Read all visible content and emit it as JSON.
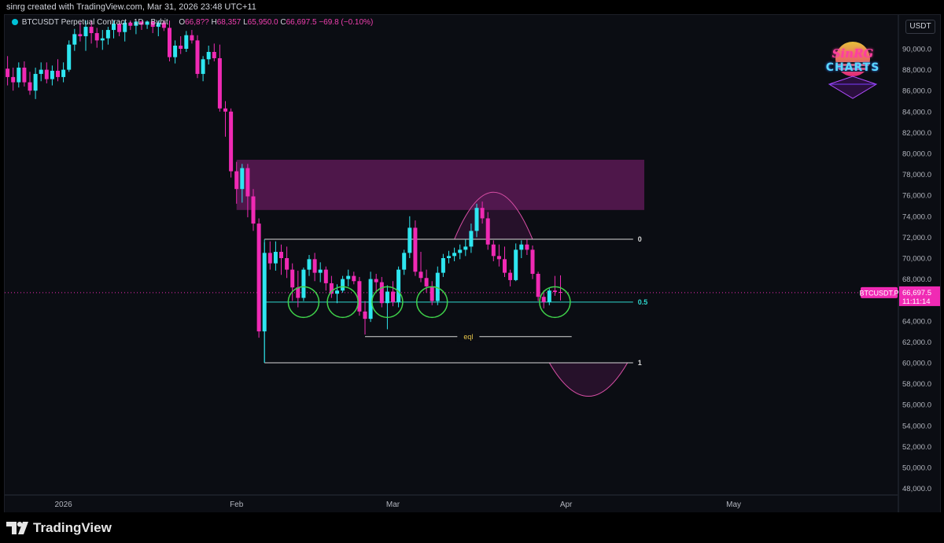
{
  "header": {
    "credit": "sinrg created with TradingView.com, Mar 31, 2026 23:48 UTC+11"
  },
  "legend": {
    "symbol": "BTCUSDT Perpetual Contract · 1D · Bybit",
    "o_label": "O",
    "o_value": "66,8??",
    "h_label": "H",
    "h_value": "68,357",
    "l_label": "L",
    "l_value": "65,950.0",
    "c_label": "C",
    "c_value": "66,697.5",
    "change": "−69.8 (−0.10%)"
  },
  "price_axis": {
    "currency": "USDT",
    "ticks": [
      "90,000.0",
      "88,000.0",
      "86,000.0",
      "84,000.0",
      "82,000.0",
      "80,000.0",
      "78,000.0",
      "76,000.0",
      "74,000.0",
      "72,000.0",
      "70,000.0",
      "68,000.0",
      "64,000.0",
      "62,000.0",
      "60,000.0",
      "58,000.0",
      "56,000.0",
      "54,000.0",
      "52,000.0",
      "50,000.0",
      "48,000.0"
    ],
    "last_symbol": "BTCUSDT.P",
    "last_price": "66,697.5",
    "countdown": "11:11:14"
  },
  "time_axis": {
    "labels": [
      "2026",
      "Feb",
      "Mar",
      "Apr",
      "May"
    ]
  },
  "drawings": {
    "fib_0": "0",
    "fib_05": "0.5",
    "fib_1": "1",
    "eql": "eql"
  },
  "watermark": {
    "line1": "SinRG",
    "line2": "CHARTS"
  },
  "footer": {
    "brand": "TradingView"
  },
  "colors": {
    "background": "#0b0d13",
    "bull": "#2ee6f0",
    "bear": "#f02ab4",
    "fib_level_0_1": "#d8d8d8",
    "fib_level_05": "#2fd9cf",
    "eql_line": "#d8d8d8",
    "eql_label": "#e8c64b",
    "circles": "#3fd24a",
    "supply_zone": "#5a1a55",
    "arcs": "#d94fa6",
    "price_tag": "#f02ab4"
  },
  "chart_data": {
    "type": "candlestick",
    "title": "BTCUSDT Perpetual Contract · 1D · Bybit",
    "interval": "1D",
    "ylim": [
      47000,
      92700
    ],
    "x_labels": [
      "2026",
      "Feb",
      "Mar",
      "Apr",
      "May"
    ],
    "candles": [
      {
        "date": "2025-12-21",
        "o": 88900,
        "h": 89800,
        "l": 87500,
        "c": 88100
      },
      {
        "date": "2025-12-22",
        "o": 88100,
        "h": 89300,
        "l": 86500,
        "c": 87300
      },
      {
        "date": "2025-12-23",
        "o": 87300,
        "h": 88200,
        "l": 86000,
        "c": 86800
      },
      {
        "date": "2025-12-24",
        "o": 86800,
        "h": 88700,
        "l": 86300,
        "c": 88200
      },
      {
        "date": "2025-12-25",
        "o": 88200,
        "h": 88800,
        "l": 86400,
        "c": 86800
      },
      {
        "date": "2025-12-26",
        "o": 86800,
        "h": 87800,
        "l": 85600,
        "c": 86000
      },
      {
        "date": "2025-12-27",
        "o": 86000,
        "h": 88200,
        "l": 85200,
        "c": 87600
      },
      {
        "date": "2025-12-28",
        "o": 87600,
        "h": 88700,
        "l": 86900,
        "c": 88000
      },
      {
        "date": "2025-12-29",
        "o": 88000,
        "h": 88700,
        "l": 86700,
        "c": 87100
      },
      {
        "date": "2025-12-30",
        "o": 87100,
        "h": 88400,
        "l": 86500,
        "c": 87900
      },
      {
        "date": "2025-12-31",
        "o": 87900,
        "h": 89000,
        "l": 86900,
        "c": 87300
      },
      {
        "date": "2026-01-01",
        "o": 87300,
        "h": 88700,
        "l": 86800,
        "c": 88000
      },
      {
        "date": "2026-01-02",
        "o": 88000,
        "h": 90800,
        "l": 87800,
        "c": 90400
      },
      {
        "date": "2026-01-03",
        "o": 90400,
        "h": 91900,
        "l": 89800,
        "c": 91400
      },
      {
        "date": "2026-01-04",
        "o": 91400,
        "h": 92500,
        "l": 90700,
        "c": 91200
      },
      {
        "date": "2026-01-05",
        "o": 91200,
        "h": 92700,
        "l": 89800,
        "c": 92100
      },
      {
        "date": "2026-01-06",
        "o": 92100,
        "h": 92700,
        "l": 90500,
        "c": 91500
      },
      {
        "date": "2026-01-07",
        "o": 91500,
        "h": 92000,
        "l": 90100,
        "c": 90800
      },
      {
        "date": "2026-01-08",
        "o": 90800,
        "h": 91800,
        "l": 89900,
        "c": 91000
      },
      {
        "date": "2026-01-09",
        "o": 91000,
        "h": 92100,
        "l": 90400,
        "c": 91800
      },
      {
        "date": "2026-01-10",
        "o": 91800,
        "h": 92700,
        "l": 91000,
        "c": 92400
      },
      {
        "date": "2026-01-11",
        "o": 92400,
        "h": 92700,
        "l": 91200,
        "c": 91600
      },
      {
        "date": "2026-01-12",
        "o": 91600,
        "h": 92700,
        "l": 90700,
        "c": 92500
      },
      {
        "date": "2026-01-13",
        "o": 92500,
        "h": 92700,
        "l": 91800,
        "c": 92200
      },
      {
        "date": "2026-01-14",
        "o": 92200,
        "h": 92700,
        "l": 91400,
        "c": 92600
      },
      {
        "date": "2026-01-15",
        "o": 92600,
        "h": 92700,
        "l": 91800,
        "c": 92300
      },
      {
        "date": "2026-01-16",
        "o": 92300,
        "h": 92700,
        "l": 91900,
        "c": 92600
      },
      {
        "date": "2026-01-17",
        "o": 92600,
        "h": 92700,
        "l": 91500,
        "c": 92100
      },
      {
        "date": "2026-01-18",
        "o": 92100,
        "h": 92700,
        "l": 91200,
        "c": 92500
      },
      {
        "date": "2026-01-19",
        "o": 92500,
        "h": 92700,
        "l": 91700,
        "c": 92000
      },
      {
        "date": "2026-01-20",
        "o": 92000,
        "h": 92700,
        "l": 88800,
        "c": 89200
      },
      {
        "date": "2026-01-21",
        "o": 89200,
        "h": 90800,
        "l": 88600,
        "c": 90300
      },
      {
        "date": "2026-01-22",
        "o": 90300,
        "h": 91200,
        "l": 89500,
        "c": 90000
      },
      {
        "date": "2026-01-23",
        "o": 90000,
        "h": 91700,
        "l": 89700,
        "c": 91300
      },
      {
        "date": "2026-01-24",
        "o": 91300,
        "h": 91800,
        "l": 90500,
        "c": 90800
      },
      {
        "date": "2026-01-25",
        "o": 90800,
        "h": 91300,
        "l": 87200,
        "c": 87600
      },
      {
        "date": "2026-01-26",
        "o": 87600,
        "h": 89300,
        "l": 86900,
        "c": 89000
      },
      {
        "date": "2026-01-27",
        "o": 89000,
        "h": 90300,
        "l": 88500,
        "c": 89700
      },
      {
        "date": "2026-01-28",
        "o": 89700,
        "h": 90500,
        "l": 88800,
        "c": 89100
      },
      {
        "date": "2026-01-29",
        "o": 89100,
        "h": 90400,
        "l": 84000,
        "c": 84300
      },
      {
        "date": "2026-01-30",
        "o": 84300,
        "h": 85000,
        "l": 81600,
        "c": 84000
      },
      {
        "date": "2026-01-31",
        "o": 84000,
        "h": 84300,
        "l": 77700,
        "c": 78300
      },
      {
        "date": "2026-02-01",
        "o": 78300,
        "h": 79200,
        "l": 75200,
        "c": 76600
      },
      {
        "date": "2026-02-02",
        "o": 76600,
        "h": 79000,
        "l": 75300,
        "c": 78600
      },
      {
        "date": "2026-02-03",
        "o": 78600,
        "h": 79000,
        "l": 73900,
        "c": 75900
      },
      {
        "date": "2026-02-04",
        "o": 75900,
        "h": 76600,
        "l": 72600,
        "c": 73300
      },
      {
        "date": "2026-02-05",
        "o": 73300,
        "h": 73800,
        "l": 62400,
        "c": 63000
      },
      {
        "date": "2026-02-06",
        "o": 63000,
        "h": 71500,
        "l": 60000,
        "c": 70500
      },
      {
        "date": "2026-02-07",
        "o": 70500,
        "h": 71600,
        "l": 68900,
        "c": 69500
      },
      {
        "date": "2026-02-08",
        "o": 69500,
        "h": 71600,
        "l": 68800,
        "c": 70600
      },
      {
        "date": "2026-02-09",
        "o": 70600,
        "h": 71300,
        "l": 68400,
        "c": 70000
      },
      {
        "date": "2026-02-10",
        "o": 70000,
        "h": 71100,
        "l": 68100,
        "c": 68900
      },
      {
        "date": "2026-02-11",
        "o": 68900,
        "h": 69500,
        "l": 65900,
        "c": 67200
      },
      {
        "date": "2026-02-12",
        "o": 67200,
        "h": 68800,
        "l": 65300,
        "c": 66200
      },
      {
        "date": "2026-02-13",
        "o": 66200,
        "h": 69100,
        "l": 65900,
        "c": 68900
      },
      {
        "date": "2026-02-14",
        "o": 68900,
        "h": 70300,
        "l": 68300,
        "c": 69900
      },
      {
        "date": "2026-02-15",
        "o": 69900,
        "h": 70500,
        "l": 67800,
        "c": 68600
      },
      {
        "date": "2026-02-16",
        "o": 68600,
        "h": 69600,
        "l": 67700,
        "c": 68900
      },
      {
        "date": "2026-02-17",
        "o": 68900,
        "h": 69200,
        "l": 66900,
        "c": 67600
      },
      {
        "date": "2026-02-18",
        "o": 67600,
        "h": 68300,
        "l": 66200,
        "c": 66600
      },
      {
        "date": "2026-02-19",
        "o": 66600,
        "h": 67500,
        "l": 65700,
        "c": 66900
      },
      {
        "date": "2026-02-20",
        "o": 66900,
        "h": 68300,
        "l": 66700,
        "c": 68000
      },
      {
        "date": "2026-02-21",
        "o": 68000,
        "h": 68900,
        "l": 67300,
        "c": 68300
      },
      {
        "date": "2026-02-22",
        "o": 68300,
        "h": 68700,
        "l": 67500,
        "c": 67800
      },
      {
        "date": "2026-02-23",
        "o": 67800,
        "h": 68200,
        "l": 64500,
        "c": 64900
      },
      {
        "date": "2026-02-24",
        "o": 64900,
        "h": 65900,
        "l": 62700,
        "c": 64200
      },
      {
        "date": "2026-02-25",
        "o": 64200,
        "h": 68700,
        "l": 63900,
        "c": 68000
      },
      {
        "date": "2026-02-26",
        "o": 68000,
        "h": 68500,
        "l": 66800,
        "c": 67700
      },
      {
        "date": "2026-02-27",
        "o": 67700,
        "h": 68200,
        "l": 65300,
        "c": 65700
      },
      {
        "date": "2026-02-28",
        "o": 65700,
        "h": 67400,
        "l": 63200,
        "c": 66800
      },
      {
        "date": "2026-03-01",
        "o": 66800,
        "h": 67800,
        "l": 65400,
        "c": 65800
      },
      {
        "date": "2026-03-02",
        "o": 65800,
        "h": 69200,
        "l": 65300,
        "c": 68900
      },
      {
        "date": "2026-03-03",
        "o": 68900,
        "h": 70800,
        "l": 68400,
        "c": 70500
      },
      {
        "date": "2026-03-04",
        "o": 70500,
        "h": 74000,
        "l": 70000,
        "c": 72900
      },
      {
        "date": "2026-03-05",
        "o": 72900,
        "h": 73600,
        "l": 68300,
        "c": 68700
      },
      {
        "date": "2026-03-06",
        "o": 68700,
        "h": 70600,
        "l": 67700,
        "c": 68100
      },
      {
        "date": "2026-03-07",
        "o": 68100,
        "h": 68900,
        "l": 66700,
        "c": 67300
      },
      {
        "date": "2026-03-08",
        "o": 67300,
        "h": 67800,
        "l": 65500,
        "c": 65900
      },
      {
        "date": "2026-03-09",
        "o": 65900,
        "h": 69200,
        "l": 65500,
        "c": 68600
      },
      {
        "date": "2026-03-10",
        "o": 68600,
        "h": 70400,
        "l": 68200,
        "c": 70000
      },
      {
        "date": "2026-03-11",
        "o": 70000,
        "h": 70700,
        "l": 69500,
        "c": 70200
      },
      {
        "date": "2026-03-12",
        "o": 70200,
        "h": 71000,
        "l": 69700,
        "c": 70500
      },
      {
        "date": "2026-03-13",
        "o": 70500,
        "h": 71300,
        "l": 69900,
        "c": 70800
      },
      {
        "date": "2026-03-14",
        "o": 70800,
        "h": 71800,
        "l": 70200,
        "c": 71100
      },
      {
        "date": "2026-03-15",
        "o": 71100,
        "h": 73300,
        "l": 70500,
        "c": 72600
      },
      {
        "date": "2026-03-16",
        "o": 72600,
        "h": 75200,
        "l": 72000,
        "c": 74800
      },
      {
        "date": "2026-03-17",
        "o": 74800,
        "h": 75400,
        "l": 73300,
        "c": 73800
      },
      {
        "date": "2026-03-18",
        "o": 73800,
        "h": 74400,
        "l": 70800,
        "c": 71300
      },
      {
        "date": "2026-03-19",
        "o": 71300,
        "h": 71700,
        "l": 69700,
        "c": 70200
      },
      {
        "date": "2026-03-20",
        "o": 70200,
        "h": 71300,
        "l": 69200,
        "c": 69900
      },
      {
        "date": "2026-03-21",
        "o": 69900,
        "h": 71100,
        "l": 68200,
        "c": 68600
      },
      {
        "date": "2026-03-22",
        "o": 68600,
        "h": 68900,
        "l": 67300,
        "c": 67900
      },
      {
        "date": "2026-03-23",
        "o": 67900,
        "h": 71400,
        "l": 67800,
        "c": 70800
      },
      {
        "date": "2026-03-24",
        "o": 70800,
        "h": 71700,
        "l": 70000,
        "c": 71300
      },
      {
        "date": "2026-03-25",
        "o": 71300,
        "h": 71800,
        "l": 70300,
        "c": 70800
      },
      {
        "date": "2026-03-26",
        "o": 70800,
        "h": 71200,
        "l": 68000,
        "c": 68500
      },
      {
        "date": "2026-03-27",
        "o": 68500,
        "h": 68700,
        "l": 65900,
        "c": 66300
      },
      {
        "date": "2026-03-28",
        "o": 66300,
        "h": 66900,
        "l": 65200,
        "c": 65800
      },
      {
        "date": "2026-03-29",
        "o": 65800,
        "h": 67100,
        "l": 65500,
        "c": 66900
      },
      {
        "date": "2026-03-30",
        "o": 66900,
        "h": 68300,
        "l": 66400,
        "c": 66767
      },
      {
        "date": "2026-03-31",
        "o": 66767,
        "h": 68357,
        "l": 65950,
        "c": 66697.5
      }
    ],
    "annotations": {
      "supply_zone": {
        "top": 79400,
        "bottom": 74600,
        "from": "2026-02-01",
        "to": "2026-04-15"
      },
      "fib_levels": [
        {
          "label": "0",
          "price": 71800,
          "from": "2026-02-06",
          "to": "2026-04-13"
        },
        {
          "label": "0.5",
          "price": 65800,
          "from": "2026-02-06",
          "to": "2026-04-13"
        },
        {
          "label": "1",
          "price": 60000,
          "from": "2026-02-06",
          "to": "2026-04-13"
        }
      ],
      "eql": {
        "label": "eql",
        "price": 62500,
        "from": "2026-02-24",
        "to": "2026-04-02"
      },
      "circles": [
        {
          "date": "2026-02-13",
          "price": 65800
        },
        {
          "date": "2026-02-20",
          "price": 65800
        },
        {
          "date": "2026-02-28",
          "price": 65800
        },
        {
          "date": "2026-03-08",
          "price": 65800
        },
        {
          "date": "2026-03-30",
          "price": 65800
        }
      ],
      "arc_top": {
        "from": "2026-03-12",
        "to": "2026-03-26",
        "peak": 76300,
        "base": 71800
      },
      "arc_bottom": {
        "from": "2026-03-29",
        "to": "2026-04-12",
        "trough": 56800,
        "base": 60000
      }
    }
  }
}
